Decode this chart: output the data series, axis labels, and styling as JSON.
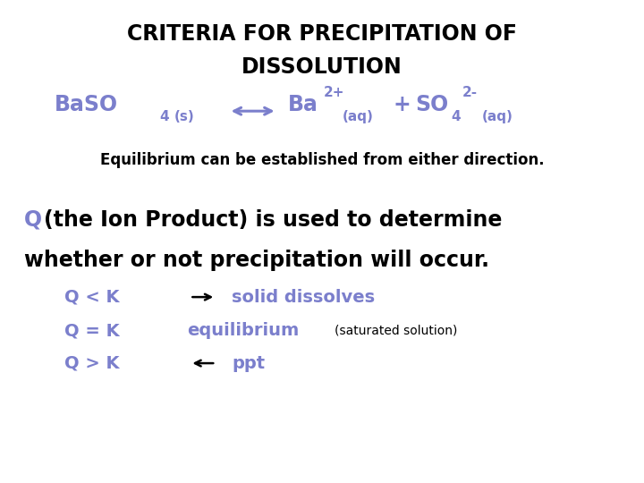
{
  "background_color": "#ffffff",
  "title_line1": "CRITERIA FOR PRECIPITATION OF",
  "title_line2": "DISSOLUTION",
  "title_color": "#000000",
  "title_fontsize": 17,
  "purple_color": "#7b7fcc",
  "black_color": "#000000",
  "equilibrium_text": "Equilibrium can be established from either direction.",
  "eq_fontsize": 12,
  "body_fontsize": 17,
  "sub_fontsize": 14,
  "small_fontsize": 10
}
